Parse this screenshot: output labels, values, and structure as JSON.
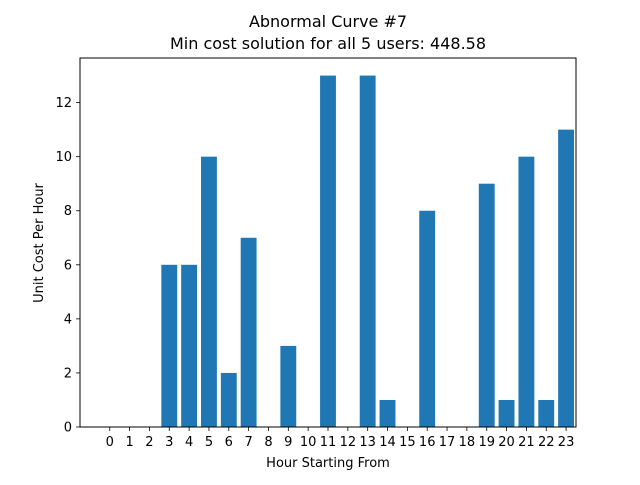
{
  "chart_data": {
    "type": "bar",
    "title": "Abnormal Curve #7",
    "subtitle": "Min cost solution for all 5 users: 448.58",
    "xlabel": "Hour Starting From",
    "ylabel": "Unit Cost Per Hour",
    "categories": [
      "0",
      "1",
      "2",
      "3",
      "4",
      "5",
      "6",
      "7",
      "8",
      "9",
      "10",
      "11",
      "12",
      "13",
      "14",
      "15",
      "16",
      "17",
      "18",
      "19",
      "20",
      "21",
      "22",
      "23"
    ],
    "values": [
      0,
      0,
      0,
      6,
      6,
      10,
      2,
      7,
      0,
      3,
      0,
      13,
      0,
      13,
      1,
      0,
      8,
      0,
      0,
      9,
      1,
      10,
      1,
      11
    ],
    "ylim": [
      0,
      13.65
    ],
    "yticks": [
      0,
      2,
      4,
      6,
      8,
      10,
      12
    ],
    "grid": false,
    "bar_color": "#1f77b4"
  }
}
